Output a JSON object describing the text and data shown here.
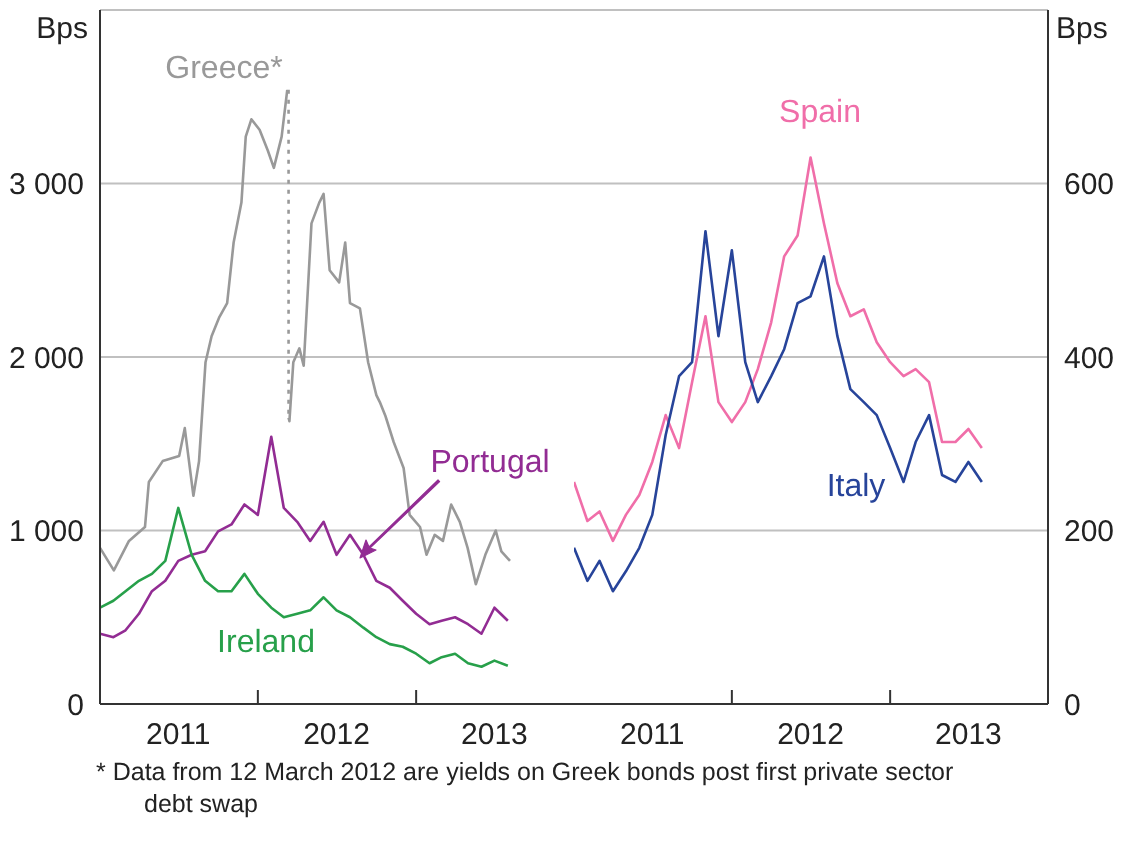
{
  "chart_data": [
    {
      "type": "line",
      "ylabel": "Bps",
      "xlim": [
        "2011-01-01",
        "2014-01-01"
      ],
      "ylim": [
        0,
        4000
      ],
      "grid": "y",
      "xticks": [
        {
          "value": "2011-07-01",
          "label": "2011"
        },
        {
          "value": "2012-01-01",
          "label": null
        },
        {
          "value": "2012-07-01",
          "label": "2012"
        },
        {
          "value": "2013-01-01",
          "label": null
        },
        {
          "value": "2013-07-01",
          "label": "2013"
        }
      ],
      "yticks": [
        0,
        {
          "value": 1000,
          "label": "1 000"
        },
        {
          "value": 2000,
          "label": "2 000"
        },
        {
          "value": 3000,
          "label": "3 000"
        }
      ],
      "series": [
        {
          "name": "Greece*",
          "color": "#999999",
          "x": [
            "2011-01-01",
            "2011-02-02",
            "2011-03-09",
            "2011-04-15",
            "2011-04-24",
            "2011-05-26",
            "2011-07-03",
            "2011-07-16",
            "2011-08-05",
            "2011-08-18",
            "2011-09-02",
            "2011-09-16",
            "2011-10-04",
            "2011-10-22",
            "2011-11-06",
            "2011-11-24",
            "2011-12-04",
            "2011-12-17",
            "2012-01-05",
            "2012-01-24",
            "2012-02-07",
            "2012-02-25",
            "2012-03-09"
          ],
          "values": [
            900,
            770,
            940,
            1020,
            1280,
            1400,
            1430,
            1590,
            1200,
            1400,
            1970,
            2120,
            2230,
            2310,
            2660,
            2890,
            3270,
            3370,
            3310,
            3190,
            3090,
            3270,
            3540
          ]
        },
        {
          "color": "#999999",
          "line_style": "dotted",
          "x": [
            "2012-03-12",
            "2012-03-12"
          ],
          "values": [
            3540,
            1650
          ]
        },
        {
          "color": "#999999",
          "x": [
            "2012-03-12",
            "2012-03-14",
            "2012-03-23",
            "2012-04-06",
            "2012-04-16",
            "2012-05-04",
            "2012-05-22",
            "2012-06-01",
            "2012-06-15",
            "2012-07-07",
            "2012-07-21",
            "2012-08-01",
            "2012-08-24",
            "2012-09-12",
            "2012-10-01",
            "2012-10-09",
            "2012-10-22",
            "2012-11-10",
            "2012-12-03",
            "2012-12-17",
            "2013-01-10",
            "2013-01-25",
            "2013-02-13",
            "2013-03-04",
            "2013-03-23",
            "2013-04-12",
            "2013-04-30",
            "2013-05-19",
            "2013-06-10",
            "2013-07-04",
            "2013-07-17",
            "2013-08-06"
          ],
          "values": [
            1650,
            1630,
            1970,
            2050,
            1950,
            2770,
            2890,
            2940,
            2500,
            2430,
            2660,
            2310,
            2280,
            1970,
            1780,
            1740,
            1660,
            1510,
            1360,
            1090,
            1020,
            860,
            975,
            940,
            1150,
            1050,
            900,
            690,
            860,
            1000,
            880,
            825
          ]
        },
        {
          "name": "Portugal",
          "color": "#922c93",
          "x": [
            "2011-01",
            "2011-02",
            "2011-03",
            "2011-04",
            "2011-05",
            "2011-06",
            "2011-07",
            "2011-08",
            "2011-09",
            "2011-10",
            "2011-11",
            "2011-12",
            "2012-01",
            "2012-02",
            "2012-03",
            "2012-04",
            "2012-05",
            "2012-06",
            "2012-07",
            "2012-08",
            "2012-09",
            "2012-10",
            "2012-11",
            "2012-12",
            "2013-01",
            "2013-02",
            "2013-03",
            "2013-04",
            "2013-05",
            "2013-06",
            "2013-07",
            "2013-08"
          ],
          "values": [
            405,
            385,
            425,
            520,
            650,
            710,
            825,
            860,
            880,
            995,
            1035,
            1150,
            1090,
            1540,
            1130,
            1050,
            940,
            1050,
            860,
            975,
            860,
            710,
            670,
            595,
            520,
            460,
            480,
            500,
            460,
            405,
            555,
            480
          ]
        },
        {
          "name": "Ireland",
          "color": "#27a04a",
          "x": [
            "2011-01",
            "2011-02",
            "2011-03",
            "2011-04",
            "2011-05",
            "2011-06",
            "2011-07",
            "2011-08",
            "2011-09",
            "2011-10",
            "2011-11",
            "2011-12",
            "2012-01",
            "2012-02",
            "2012-03",
            "2012-04",
            "2012-05",
            "2012-06",
            "2012-07",
            "2012-08",
            "2012-09",
            "2012-10",
            "2012-11",
            "2012-12",
            "2013-01",
            "2013-02",
            "2013-03",
            "2013-04",
            "2013-05",
            "2013-06",
            "2013-07",
            "2013-08"
          ],
          "values": [
            555,
            595,
            650,
            710,
            750,
            825,
            1130,
            860,
            710,
            650,
            650,
            750,
            635,
            555,
            500,
            520,
            540,
            615,
            540,
            500,
            440,
            385,
            345,
            330,
            290,
            235,
            270,
            290,
            235,
            215,
            250,
            220
          ]
        }
      ],
      "annotations": [
        "* Data from 12 March 2012 are yields on Greek bonds post first private sector debt swap"
      ]
    },
    {
      "type": "line",
      "y2label": "Bps",
      "xlim": [
        "2011-01-01",
        "2014-01-01"
      ],
      "y2lim": [
        0,
        800
      ],
      "grid": "y",
      "xticks": [
        {
          "value": "2011-07-01",
          "label": "2011"
        },
        {
          "value": "2012-01-01",
          "label": null
        },
        {
          "value": "2012-07-01",
          "label": "2012"
        },
        {
          "value": "2013-01-01",
          "label": null
        },
        {
          "value": "2013-07-01",
          "label": "2013"
        }
      ],
      "y2ticks": [
        0,
        200,
        400,
        600
      ],
      "series": [
        {
          "name": "Spain",
          "color": "#f06ea9",
          "axis": "y2",
          "x": [
            "2011-01",
            "2011-02",
            "2011-03",
            "2011-04",
            "2011-05",
            "2011-06",
            "2011-07",
            "2011-08",
            "2011-09",
            "2011-10",
            "2011-11",
            "2011-12",
            "2012-01",
            "2012-02",
            "2012-03",
            "2012-04",
            "2012-05",
            "2012-06",
            "2012-07",
            "2012-08",
            "2012-09",
            "2012-10",
            "2012-11",
            "2012-12",
            "2013-01",
            "2013-02",
            "2013-03",
            "2013-04",
            "2013-05",
            "2013-06",
            "2013-07",
            "2013-08"
          ],
          "values": [
            256,
            211,
            222,
            188,
            218,
            241,
            279,
            333,
            295,
            371,
            447,
            348,
            325,
            348,
            386,
            440,
            516,
            540,
            630,
            554,
            485,
            447,
            455,
            417,
            394,
            378,
            386,
            371,
            302,
            302,
            317,
            295
          ]
        },
        {
          "name": "Italy",
          "color": "#27449a",
          "axis": "y2",
          "x": [
            "2011-01",
            "2011-02",
            "2011-03",
            "2011-04",
            "2011-05",
            "2011-06",
            "2011-07",
            "2011-08",
            "2011-09",
            "2011-10",
            "2011-11",
            "2011-12",
            "2012-01",
            "2012-02",
            "2012-03",
            "2012-04",
            "2012-05",
            "2012-06",
            "2012-07",
            "2012-08",
            "2012-09",
            "2012-10",
            "2012-11",
            "2012-12",
            "2013-01",
            "2013-02",
            "2013-03",
            "2013-04",
            "2013-05",
            "2013-06",
            "2013-07",
            "2013-08"
          ],
          "values": [
            180,
            142,
            165,
            130,
            153,
            180,
            218,
            310,
            378,
            394,
            545,
            424,
            523,
            394,
            348,
            378,
            409,
            462,
            470,
            516,
            424,
            363,
            348,
            333,
            295,
            256,
            302,
            333,
            264,
            256,
            279,
            256
          ]
        }
      ]
    }
  ]
}
